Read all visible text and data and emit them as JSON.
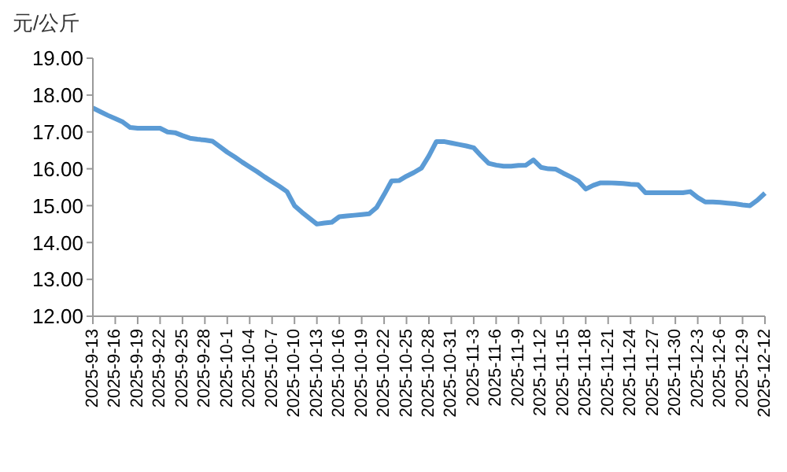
{
  "chart_data": {
    "type": "line",
    "ylabel": "元/公斤",
    "categories": [
      "2025-9-13",
      null,
      null,
      "2025-9-16",
      null,
      null,
      "2025-9-19",
      null,
      null,
      "2025-9-22",
      null,
      null,
      "2025-9-25",
      null,
      null,
      "2025-9-28",
      null,
      null,
      "2025-10-1",
      null,
      null,
      "2025-10-4",
      null,
      null,
      "2025-10-7",
      null,
      null,
      "2025-10-10",
      null,
      null,
      "2025-10-13",
      null,
      null,
      "2025-10-16",
      null,
      null,
      "2025-10-19",
      null,
      null,
      "2025-10-22",
      null,
      null,
      "2025-10-25",
      null,
      null,
      "2025-10-28",
      null,
      null,
      "2025-10-31",
      null,
      null,
      "2025-11-3",
      null,
      null,
      "2025-11-6",
      null,
      null,
      "2025-11-9",
      null,
      null,
      "2025-11-12",
      null,
      null,
      "2025-11-15",
      null,
      null,
      "2025-11-18",
      null,
      null,
      "2025-11-21",
      null,
      null,
      "2025-11-24",
      null,
      null,
      "2025-11-27",
      null,
      null,
      "2025-11-30",
      null,
      null,
      "2025-12-3",
      null,
      null,
      "2025-12-6",
      null,
      null,
      "2025-12-9",
      null,
      null,
      "2025-12-12"
    ],
    "series": [
      {
        "color": "#5b9bd5",
        "values": [
          17.65,
          17.55,
          17.45,
          17.36,
          17.27,
          17.12,
          17.1,
          17.1,
          17.1,
          17.1,
          17.0,
          16.98,
          16.9,
          16.83,
          16.8,
          16.78,
          16.75,
          16.6,
          16.45,
          16.32,
          16.18,
          16.05,
          15.92,
          15.78,
          15.65,
          15.52,
          15.38,
          15.0,
          14.82,
          14.66,
          14.5,
          14.53,
          14.55,
          14.7,
          14.72,
          14.74,
          14.76,
          14.78,
          14.95,
          15.3,
          15.67,
          15.68,
          15.8,
          15.9,
          16.02,
          16.35,
          16.74,
          16.74,
          16.7,
          16.66,
          16.62,
          16.57,
          16.35,
          16.15,
          16.1,
          16.07,
          16.07,
          16.09,
          16.1,
          16.24,
          16.04,
          16.0,
          15.99,
          15.88,
          15.78,
          15.67,
          15.45,
          15.55,
          15.62,
          15.62,
          15.61,
          15.6,
          15.58,
          15.57,
          15.35,
          15.35,
          15.35,
          15.35,
          15.35,
          15.35,
          15.38,
          15.22,
          15.1,
          15.1,
          15.09,
          15.07,
          15.05,
          15.02,
          15.0,
          15.15,
          15.34
        ]
      }
    ],
    "ylim": [
      12,
      19
    ],
    "yticks": [
      {
        "value": 12,
        "label": "12.00"
      },
      {
        "value": 13,
        "label": "13.00"
      },
      {
        "value": 14,
        "label": "14.00"
      },
      {
        "value": 15,
        "label": "15.00"
      },
      {
        "value": 16,
        "label": "16.00"
      },
      {
        "value": 17,
        "label": "17.00"
      },
      {
        "value": 18,
        "label": "18.00"
      },
      {
        "value": 19,
        "label": "19.00"
      }
    ],
    "grid": false,
    "legend": false,
    "marker": "none",
    "line_style": "solid"
  }
}
